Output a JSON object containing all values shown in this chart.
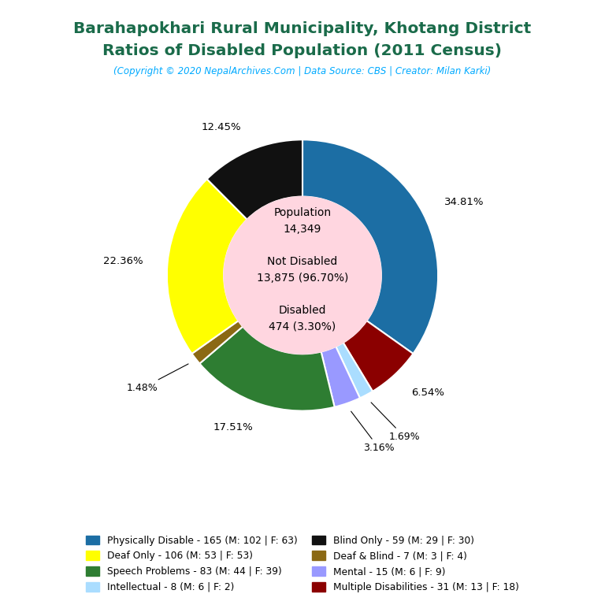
{
  "title_line1": "Barahapokhari Rural Municipality, Khotang District",
  "title_line2": "Ratios of Disabled Population (2011 Census)",
  "subtitle": "(Copyright © 2020 NepalArchives.Com | Data Source: CBS | Creator: Milan Karki)",
  "title_color": "#1a6b4a",
  "subtitle_color": "#00aaff",
  "center_bg": "#ffd6e0",
  "slices": [
    {
      "label": "Physically Disable - 165 (M: 102 | F: 63)",
      "value": 165,
      "pct": "34.81%",
      "color": "#1c6ea4"
    },
    {
      "label": "Multiple Disabilities - 31 (M: 13 | F: 18)",
      "value": 31,
      "pct": "6.54%",
      "color": "#8b0000"
    },
    {
      "label": "Intellectual - 8 (M: 6 | F: 2)",
      "value": 8,
      "pct": "1.69%",
      "color": "#aaddff"
    },
    {
      "label": "Mental - 15 (M: 6 | F: 9)",
      "value": 15,
      "pct": "3.16%",
      "color": "#9999ff"
    },
    {
      "label": "Speech Problems - 83 (M: 44 | F: 39)",
      "value": 83,
      "pct": "17.51%",
      "color": "#2e7d32"
    },
    {
      "label": "Deaf & Blind - 7 (M: 3 | F: 4)",
      "value": 7,
      "pct": "1.48%",
      "color": "#8b6914"
    },
    {
      "label": "Deaf Only - 106 (M: 53 | F: 53)",
      "value": 106,
      "pct": "22.36%",
      "color": "#ffff00"
    },
    {
      "label": "Blind Only - 59 (M: 29 | F: 30)",
      "value": 59,
      "pct": "12.45%",
      "color": "#111111"
    }
  ],
  "legend_order": [
    "Physically Disable - 165 (M: 102 | F: 63)",
    "Deaf Only - 106 (M: 53 | F: 53)",
    "Speech Problems - 83 (M: 44 | F: 39)",
    "Intellectual - 8 (M: 6 | F: 2)",
    "Blind Only - 59 (M: 29 | F: 30)",
    "Deaf & Blind - 7 (M: 3 | F: 4)",
    "Mental - 15 (M: 6 | F: 9)",
    "Multiple Disabilities - 31 (M: 13 | F: 18)"
  ],
  "legend_colors": {
    "Physically Disable - 165 (M: 102 | F: 63)": "#1c6ea4",
    "Deaf Only - 106 (M: 53 | F: 53)": "#ffff00",
    "Speech Problems - 83 (M: 44 | F: 39)": "#2e7d32",
    "Intellectual - 8 (M: 6 | F: 2)": "#aaddff",
    "Blind Only - 59 (M: 29 | F: 30)": "#111111",
    "Deaf & Blind - 7 (M: 3 | F: 4)": "#8b6914",
    "Mental - 15 (M: 6 | F: 9)": "#9999ff",
    "Multiple Disabilities - 31 (M: 13 | F: 18)": "#8b0000"
  },
  "bg_color": "#ffffff"
}
